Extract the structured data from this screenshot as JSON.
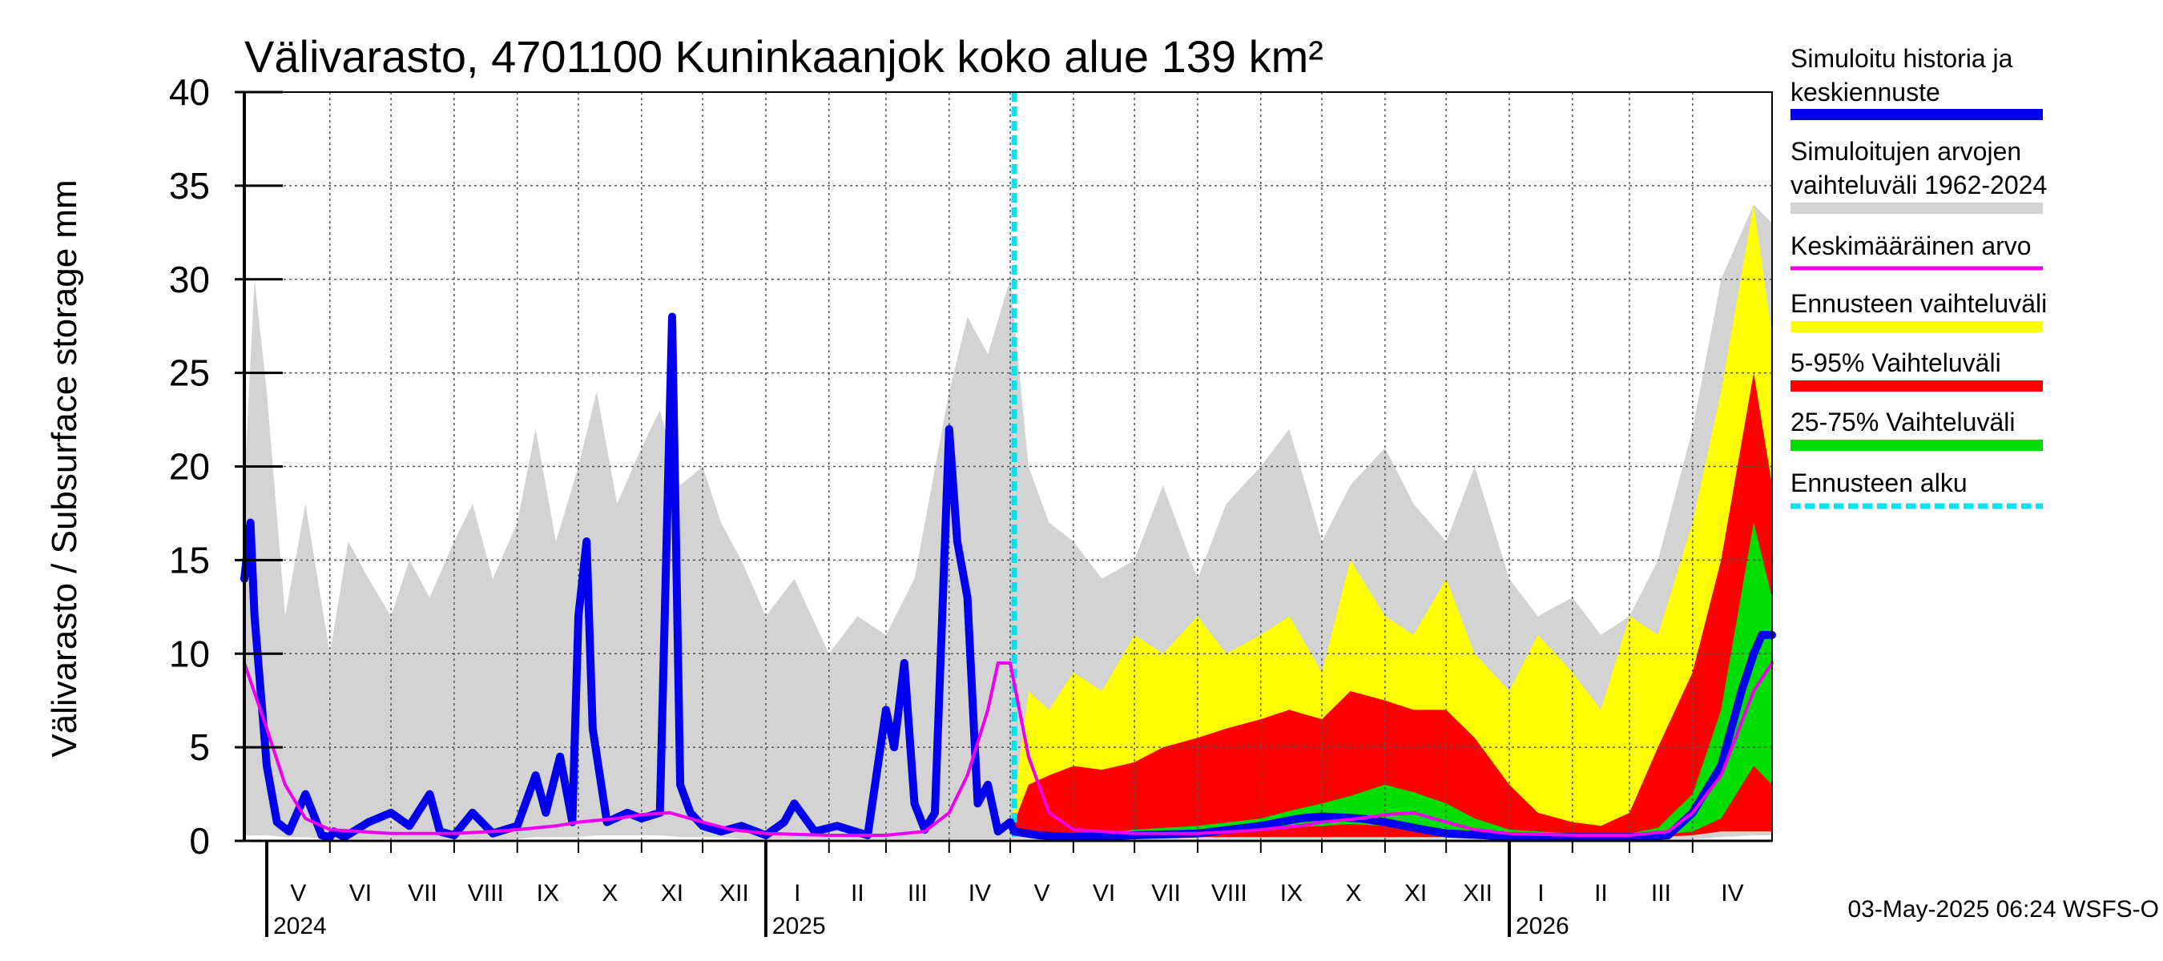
{
  "chart_data": {
    "type": "area",
    "title": "Välivarasto, 4701100 Kuninkaanjok koko alue 139 km²",
    "ylabel": "Välivarasto / Subsurface storage  mm",
    "ylim": [
      0,
      40
    ],
    "yticks": [
      0,
      5,
      10,
      15,
      20,
      25,
      30,
      35,
      40
    ],
    "grid": true,
    "legend_position": "right",
    "x_range": [
      "2024-04-20",
      "2026-05-10"
    ],
    "forecast_start": "2025-05-03",
    "months": [
      {
        "label": "V",
        "start": "2024-05-01"
      },
      {
        "label": "VI",
        "start": "2024-06-01"
      },
      {
        "label": "VII",
        "start": "2024-07-01"
      },
      {
        "label": "VIII",
        "start": "2024-08-01"
      },
      {
        "label": "IX",
        "start": "2024-09-01"
      },
      {
        "label": "X",
        "start": "2024-10-01"
      },
      {
        "label": "XI",
        "start": "2024-11-01"
      },
      {
        "label": "XII",
        "start": "2024-12-01"
      },
      {
        "label": "I",
        "start": "2025-01-01"
      },
      {
        "label": "II",
        "start": "2025-02-01"
      },
      {
        "label": "III",
        "start": "2025-03-01"
      },
      {
        "label": "IV",
        "start": "2025-04-01"
      },
      {
        "label": "V",
        "start": "2025-05-01"
      },
      {
        "label": "VI",
        "start": "2025-06-01"
      },
      {
        "label": "VII",
        "start": "2025-07-01"
      },
      {
        "label": "VIII",
        "start": "2025-08-01"
      },
      {
        "label": "IX",
        "start": "2025-09-01"
      },
      {
        "label": "X",
        "start": "2025-10-01"
      },
      {
        "label": "XI",
        "start": "2025-11-01"
      },
      {
        "label": "XII",
        "start": "2025-12-01"
      },
      {
        "label": "I",
        "start": "2026-01-01"
      },
      {
        "label": "II",
        "start": "2026-02-01"
      },
      {
        "label": "III",
        "start": "2026-03-01"
      },
      {
        "label": "IV",
        "start": "2026-04-01"
      }
    ],
    "years": [
      {
        "label": "2024",
        "start": "2024-05-01"
      },
      {
        "label": "2025",
        "start": "2025-01-01"
      },
      {
        "label": "2026",
        "start": "2026-01-01"
      }
    ],
    "series": [
      {
        "name": "Simuloitujen arvojen vaihteluväli 1962-2024",
        "kind": "band",
        "color": "#d3d3d3",
        "x": [
          "2024-04-20",
          "2024-04-25",
          "2024-05-01",
          "2024-05-10",
          "2024-05-20",
          "2024-06-01",
          "2024-06-10",
          "2024-06-20",
          "2024-07-01",
          "2024-07-10",
          "2024-07-20",
          "2024-08-01",
          "2024-08-10",
          "2024-08-20",
          "2024-09-01",
          "2024-09-10",
          "2024-09-20",
          "2024-10-01",
          "2024-10-10",
          "2024-10-20",
          "2024-11-01",
          "2024-11-10",
          "2024-11-20",
          "2024-12-01",
          "2024-12-10",
          "2024-12-20",
          "2025-01-01",
          "2025-01-15",
          "2025-02-01",
          "2025-02-15",
          "2025-03-01",
          "2025-03-15",
          "2025-04-01",
          "2025-04-10",
          "2025-04-20",
          "2025-05-01",
          "2025-05-10",
          "2025-05-20",
          "2025-06-01",
          "2025-06-15",
          "2025-07-01",
          "2025-07-15",
          "2025-08-01",
          "2025-08-15",
          "2025-09-01",
          "2025-09-15",
          "2025-10-01",
          "2025-10-15",
          "2025-11-01",
          "2025-11-15",
          "2025-12-01",
          "2025-12-15",
          "2026-01-01",
          "2026-01-15",
          "2026-02-01",
          "2026-02-15",
          "2026-03-01",
          "2026-03-15",
          "2026-04-01",
          "2026-04-15",
          "2026-05-01",
          "2026-05-10"
        ],
        "high": [
          19,
          30,
          24,
          12,
          18,
          10,
          16,
          14,
          12,
          15,
          13,
          16,
          18,
          14,
          17,
          22,
          16,
          20,
          24,
          18,
          21,
          23,
          19,
          20,
          17,
          15,
          12,
          14,
          10,
          12,
          11,
          14,
          24,
          28,
          26,
          30,
          20,
          17,
          16,
          14,
          15,
          19,
          14,
          18,
          20,
          22,
          16,
          19,
          21,
          18,
          16,
          20,
          14,
          12,
          13,
          11,
          12,
          15,
          22,
          30,
          34,
          33
        ],
        "low": [
          0.3,
          0.3,
          0.3,
          0.2,
          0.2,
          0.1,
          0.1,
          0.1,
          0.1,
          0.1,
          0.1,
          0.1,
          0.1,
          0.1,
          0.1,
          0.2,
          0.2,
          0.2,
          0.3,
          0.3,
          0.3,
          0.3,
          0.2,
          0.2,
          0.2,
          0.1,
          0.1,
          0.1,
          0.1,
          0.1,
          0.1,
          0.1,
          0.1,
          0.1,
          0.1,
          0.1,
          0.1,
          0.1,
          0.1,
          0.1,
          0.1,
          0.1,
          0.1,
          0.1,
          0.1,
          0.1,
          0.1,
          0.1,
          0.1,
          0.1,
          0.1,
          0.1,
          0.1,
          0.1,
          0.1,
          0.1,
          0.1,
          0.1,
          0.1,
          0.2,
          0.3,
          0.3
        ]
      },
      {
        "name": "Ennusteen vaihteluväli",
        "kind": "band",
        "color": "#ffff00",
        "x": [
          "2025-05-03",
          "2025-05-10",
          "2025-05-20",
          "2025-06-01",
          "2025-06-15",
          "2025-07-01",
          "2025-07-15",
          "2025-08-01",
          "2025-08-15",
          "2025-09-01",
          "2025-09-15",
          "2025-10-01",
          "2025-10-15",
          "2025-11-01",
          "2025-11-15",
          "2025-12-01",
          "2025-12-15",
          "2026-01-01",
          "2026-01-15",
          "2026-02-01",
          "2026-02-15",
          "2026-03-01",
          "2026-03-15",
          "2026-04-01",
          "2026-04-15",
          "2026-05-01",
          "2026-05-10"
        ],
        "high": [
          2,
          8,
          7,
          9,
          8,
          11,
          10,
          12,
          10,
          11,
          12,
          9,
          15,
          12,
          11,
          14,
          10,
          8,
          11,
          9,
          7,
          12,
          11,
          17,
          24,
          34,
          27
        ],
        "low": [
          0.5,
          0.5,
          0.4,
          0.3,
          0.3,
          0.2,
          0.2,
          0.2,
          0.2,
          0.2,
          0.2,
          0.2,
          0.2,
          0.2,
          0.2,
          0.2,
          0.2,
          0.2,
          0.2,
          0.2,
          0.2,
          0.2,
          0.2,
          0.3,
          0.5,
          0.5,
          0.5
        ]
      },
      {
        "name": "5-95% Vaihteluväli",
        "kind": "band",
        "color": "#ff0000",
        "x": [
          "2025-05-03",
          "2025-05-10",
          "2025-05-20",
          "2025-06-01",
          "2025-06-15",
          "2025-07-01",
          "2025-07-15",
          "2025-08-01",
          "2025-08-15",
          "2025-09-01",
          "2025-09-15",
          "2025-10-01",
          "2025-10-15",
          "2025-11-01",
          "2025-11-15",
          "2025-12-01",
          "2025-12-15",
          "2026-01-01",
          "2026-01-15",
          "2026-02-01",
          "2026-02-15",
          "2026-03-01",
          "2026-03-15",
          "2026-04-01",
          "2026-04-15",
          "2026-05-01",
          "2026-05-10"
        ],
        "high": [
          1,
          3,
          3.5,
          4,
          3.8,
          4.2,
          5,
          5.5,
          6,
          6.5,
          7,
          6.5,
          8,
          7.5,
          7,
          7,
          5.5,
          3,
          1.5,
          1,
          0.8,
          1.5,
          5,
          9,
          15,
          25,
          19
        ],
        "low": [
          0.5,
          0.5,
          0.4,
          0.3,
          0.3,
          0.2,
          0.2,
          0.2,
          0.2,
          0.2,
          0.2,
          0.2,
          0.2,
          0.2,
          0.2,
          0.2,
          0.2,
          0.2,
          0.2,
          0.2,
          0.2,
          0.2,
          0.2,
          0.3,
          0.5,
          0.5,
          0.5
        ]
      },
      {
        "name": "25-75% Vaihteluväli",
        "kind": "band",
        "color": "#00dd00",
        "x": [
          "2025-06-15",
          "2025-07-01",
          "2025-08-01",
          "2025-09-01",
          "2025-09-15",
          "2025-10-01",
          "2025-10-15",
          "2025-11-01",
          "2025-11-15",
          "2025-12-01",
          "2025-12-15",
          "2026-01-01",
          "2026-02-01",
          "2026-03-01",
          "2026-03-15",
          "2026-04-01",
          "2026-04-15",
          "2026-05-01",
          "2026-05-10"
        ],
        "high": [
          0.4,
          0.6,
          0.8,
          1.2,
          1.6,
          2,
          2.4,
          3,
          2.6,
          2,
          1.2,
          0.6,
          0.4,
          0.4,
          0.7,
          2.5,
          7,
          17,
          13
        ],
        "low": [
          0.2,
          0.3,
          0.4,
          0.6,
          0.7,
          0.8,
          0.9,
          0.8,
          0.6,
          0.5,
          0.4,
          0.3,
          0.2,
          0.2,
          0.3,
          0.5,
          1.2,
          4,
          3
        ]
      },
      {
        "name": "Simuloitu historia ja keskiennuste",
        "kind": "line",
        "color": "#0000ee",
        "x": [
          "2024-04-20",
          "2024-04-23",
          "2024-04-25",
          "2024-05-01",
          "2024-05-06",
          "2024-05-12",
          "2024-05-20",
          "2024-05-28",
          "2024-06-01",
          "2024-06-03",
          "2024-06-08",
          "2024-06-20",
          "2024-07-01",
          "2024-07-10",
          "2024-07-20",
          "2024-07-25",
          "2024-08-01",
          "2024-08-10",
          "2024-08-20",
          "2024-09-01",
          "2024-09-10",
          "2024-09-15",
          "2024-09-22",
          "2024-09-28",
          "2024-10-01",
          "2024-10-05",
          "2024-10-08",
          "2024-10-15",
          "2024-10-25",
          "2024-11-01",
          "2024-11-10",
          "2024-11-16",
          "2024-11-20",
          "2024-11-25",
          "2024-12-01",
          "2024-12-10",
          "2024-12-20",
          "2025-01-01",
          "2025-01-10",
          "2025-01-15",
          "2025-01-25",
          "2025-02-05",
          "2025-02-20",
          "2025-03-01",
          "2025-03-05",
          "2025-03-10",
          "2025-03-15",
          "2025-03-20",
          "2025-03-25",
          "2025-04-01",
          "2025-04-05",
          "2025-04-10",
          "2025-04-15",
          "2025-04-20",
          "2025-04-25",
          "2025-05-01",
          "2025-05-03",
          "2025-05-15",
          "2025-06-01",
          "2025-07-01",
          "2025-08-01",
          "2025-09-01",
          "2025-09-20",
          "2025-10-01",
          "2025-10-20",
          "2025-11-01",
          "2025-11-20",
          "2025-12-01",
          "2025-12-20",
          "2026-01-01",
          "2026-02-01",
          "2026-03-01",
          "2026-03-20",
          "2026-04-01",
          "2026-04-15",
          "2026-04-25",
          "2026-05-01",
          "2026-05-05",
          "2026-05-10"
        ],
        "values": [
          14,
          17,
          12,
          4,
          1,
          0.5,
          2.5,
          0.3,
          0.2,
          0.5,
          0.2,
          1,
          1.5,
          0.8,
          2.5,
          0.5,
          0.3,
          1.5,
          0.4,
          0.8,
          3.5,
          1.5,
          4.5,
          1,
          12,
          16,
          6,
          1,
          1.5,
          1.2,
          1.5,
          28,
          3,
          1.5,
          0.8,
          0.5,
          0.8,
          0.3,
          1,
          2,
          0.5,
          0.8,
          0.3,
          7,
          5,
          9.5,
          2,
          0.6,
          1.5,
          22,
          16,
          13,
          2,
          3,
          0.5,
          1,
          0.5,
          0.3,
          0.2,
          0.3,
          0.4,
          0.8,
          1.2,
          1.3,
          1.2,
          1,
          0.6,
          0.4,
          0.3,
          0.2,
          0.2,
          0.2,
          0.3,
          1.5,
          4,
          8,
          10,
          11,
          11
        ]
      },
      {
        "name": "Keskimääräinen arvo",
        "kind": "line",
        "color": "#ee00ee",
        "x": [
          "2024-04-20",
          "2024-05-01",
          "2024-05-10",
          "2024-05-20",
          "2024-06-01",
          "2024-06-15",
          "2024-07-01",
          "2024-07-20",
          "2024-08-01",
          "2024-08-20",
          "2024-09-01",
          "2024-09-20",
          "2024-10-01",
          "2024-10-20",
          "2024-11-01",
          "2024-11-15",
          "2024-12-01",
          "2024-12-15",
          "2025-01-01",
          "2025-02-01",
          "2025-03-01",
          "2025-03-20",
          "2025-04-01",
          "2025-04-10",
          "2025-04-20",
          "2025-04-25",
          "2025-05-01",
          "2025-05-10",
          "2025-05-20",
          "2025-06-01",
          "2025-06-15",
          "2025-07-01",
          "2025-07-20",
          "2025-08-01",
          "2025-08-20",
          "2025-09-01",
          "2025-09-20",
          "2025-10-01",
          "2025-10-20",
          "2025-11-01",
          "2025-11-15",
          "2025-12-01",
          "2025-12-15",
          "2026-01-01",
          "2026-02-01",
          "2026-03-01",
          "2026-03-20",
          "2026-04-01",
          "2026-04-15",
          "2026-05-01",
          "2026-05-10"
        ],
        "values": [
          9.5,
          6,
          3,
          1.2,
          0.6,
          0.5,
          0.4,
          0.4,
          0.4,
          0.5,
          0.6,
          0.8,
          1,
          1.2,
          1.4,
          1.5,
          1,
          0.6,
          0.4,
          0.3,
          0.3,
          0.5,
          1.5,
          3.5,
          7,
          9.5,
          9.5,
          4.5,
          1.5,
          0.6,
          0.5,
          0.4,
          0.4,
          0.4,
          0.5,
          0.6,
          0.8,
          1,
          1.2,
          1.4,
          1.5,
          1,
          0.6,
          0.4,
          0.3,
          0.3,
          0.5,
          1.5,
          3.5,
          8,
          9.5
        ]
      }
    ],
    "legend": [
      {
        "label": "Simuloitu historia ja keskiennuste",
        "color": "#0000ee",
        "style": "solid"
      },
      {
        "label": "Simuloitujen arvojen vaihteluväli 1962-2024",
        "color": "#d3d3d3",
        "style": "solid"
      },
      {
        "label": "Keskimääräinen arvo",
        "color": "#ee00ee",
        "style": "thin"
      },
      {
        "label": "Ennusteen vaihteluväli",
        "color": "#ffff00",
        "style": "solid"
      },
      {
        "label": "5-95% Vaihteluväli",
        "color": "#ff0000",
        "style": "solid"
      },
      {
        "label": "25-75% Vaihteluväli",
        "color": "#00dd00",
        "style": "solid"
      },
      {
        "label": "Ennusteen alku",
        "color": "#00e5ee",
        "style": "dashed"
      }
    ],
    "footer": "03-May-2025 06:24 WSFS-O"
  }
}
